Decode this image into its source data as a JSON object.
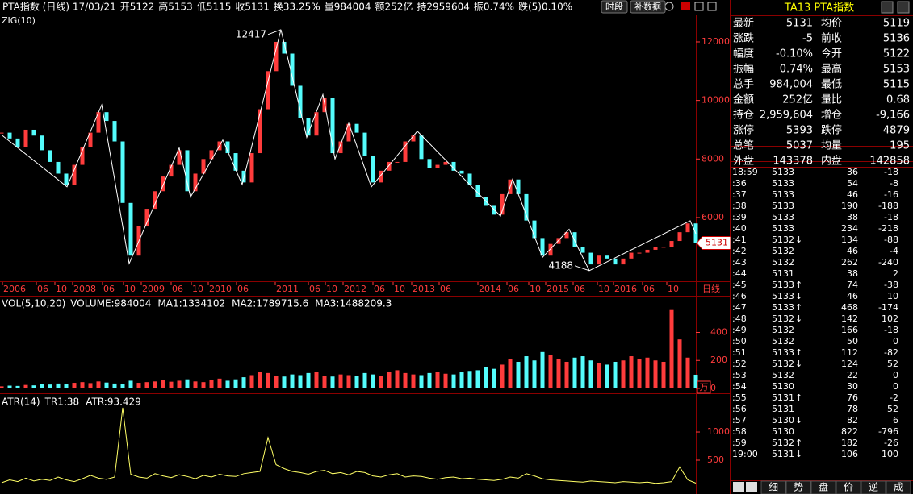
{
  "header": {
    "items": [
      {
        "text": "PTA指数 (日线) 17/03/21",
        "color": "#ffffff"
      },
      {
        "text": "开5122",
        "color": "#00e600"
      },
      {
        "text": "高5153",
        "color": "#ff3c3c"
      },
      {
        "text": "低5115",
        "color": "#00e600"
      },
      {
        "text": "收5131",
        "color": "#00e600"
      },
      {
        "text": "换33.25%",
        "color": "#ffffff"
      },
      {
        "text": "量984004",
        "color": "#ffffff"
      },
      {
        "text": "额252亿",
        "color": "#ffffff"
      },
      {
        "text": "持2959604",
        "color": "#ffffff"
      },
      {
        "text": "振0.74%",
        "color": "#ffffff"
      },
      {
        "text": "跌(5)0.10%",
        "color": "#00e600"
      }
    ],
    "buttons": [
      "时段",
      "补数据"
    ]
  },
  "price_chart": {
    "indicator": "ZIG(10)",
    "period": "日线",
    "ylim": [
      3880,
      12880
    ],
    "yticks": [
      6000,
      8000,
      10000,
      12000
    ],
    "xlim": [
      0,
      860
    ],
    "xticks": [
      {
        "value": 1,
        "label": "2006"
      },
      {
        "value": 43,
        "label": "06"
      },
      {
        "value": 66,
        "label": "10"
      },
      {
        "value": 88,
        "label": "2008"
      },
      {
        "value": 125,
        "label": "06"
      },
      {
        "value": 151,
        "label": "10"
      },
      {
        "value": 173,
        "label": "2009"
      },
      {
        "value": 210,
        "label": "06"
      },
      {
        "value": 235,
        "label": "10"
      },
      {
        "value": 256,
        "label": "2010"
      },
      {
        "value": 291,
        "label": "06"
      },
      {
        "value": 339,
        "label": "2011"
      },
      {
        "value": 380,
        "label": "06"
      },
      {
        "value": 401,
        "label": "10"
      },
      {
        "value": 423,
        "label": "2012"
      },
      {
        "value": 460,
        "label": "06"
      },
      {
        "value": 485,
        "label": "10"
      },
      {
        "value": 508,
        "label": "2013"
      },
      {
        "value": 542,
        "label": "06"
      },
      {
        "value": 590,
        "label": "2014"
      },
      {
        "value": 626,
        "label": "06"
      },
      {
        "value": 653,
        "label": "10"
      },
      {
        "value": 674,
        "label": "2015"
      },
      {
        "value": 708,
        "label": "06"
      },
      {
        "value": 738,
        "label": "10"
      },
      {
        "value": 758,
        "label": "2016"
      },
      {
        "value": 794,
        "label": "06"
      },
      {
        "value": 824,
        "label": "10"
      }
    ],
    "x": [
      0,
      10,
      20,
      30,
      40,
      50,
      60,
      70,
      80,
      90,
      100,
      110,
      120,
      130,
      140,
      150,
      160,
      170,
      180,
      190,
      200,
      210,
      220,
      230,
      240,
      250,
      260,
      270,
      280,
      290,
      300,
      310,
      320,
      330,
      340,
      350,
      360,
      370,
      380,
      390,
      400,
      410,
      420,
      430,
      440,
      450,
      460,
      470,
      480,
      490,
      500,
      510,
      520,
      530,
      540,
      550,
      560,
      570,
      580,
      590,
      600,
      610,
      620,
      630,
      640,
      650,
      660,
      670,
      680,
      690,
      700,
      710,
      720,
      730,
      740,
      750,
      760,
      770,
      780,
      790,
      800,
      810,
      820,
      830,
      840,
      850,
      860
    ],
    "close": [
      8900,
      8700,
      8400,
      9000,
      8800,
      8300,
      7900,
      7500,
      7100,
      7800,
      8400,
      8900,
      9600,
      9300,
      8600,
      6500,
      4700,
      5700,
      6300,
      6900,
      7400,
      7800,
      8300,
      6900,
      7500,
      8000,
      8300,
      8600,
      8200,
      7600,
      7200,
      8200,
      9700,
      11000,
      12000,
      11600,
      10500,
      9400,
      8800,
      9600,
      10100,
      8200,
      8600,
      9200,
      8900,
      8100,
      7200,
      7600,
      7900,
      7900,
      8600,
      8800,
      8000,
      7700,
      7800,
      7900,
      7600,
      7500,
      7100,
      6700,
      6400,
      6100,
      6800,
      7300,
      6800,
      5900,
      5300,
      4700,
      5100,
      5300,
      5500,
      5000,
      4800,
      4400,
      4700,
      4600,
      4400,
      4600,
      4800,
      4800,
      4900,
      5000,
      5000,
      5200,
      5500,
      5800,
      5131
    ],
    "zig": {
      "x": [
        1,
        81,
        124,
        158,
        220,
        234,
        274,
        298,
        346,
        378,
        398,
        413,
        430,
        458,
        515,
        618,
        633,
        670,
        703,
        728,
        853,
        860
      ],
      "y": [
        8800,
        7050,
        9850,
        4430,
        8380,
        6700,
        8650,
        7130,
        12417,
        8740,
        10200,
        8000,
        9220,
        7050,
        8950,
        6050,
        7310,
        4640,
        5600,
        4188,
        5890,
        5450
      ]
    }
  },
  "volume_chart": {
    "legend": "VOL(5,10,20)",
    "items": [
      {
        "text": "VOLUME:984004",
        "color": "#ffffff"
      },
      {
        "text": "MA1:1334102",
        "color": "#ffff00"
      },
      {
        "text": "MA2:1789715.6",
        "color": "#ff00ff"
      },
      {
        "text": "MA3:1488209.3",
        "color": "#00ff00"
      }
    ],
    "unit": "万",
    "ylim": [
      0,
      633
    ],
    "yticks": [
      0,
      200,
      400
    ],
    "values": [
      15,
      20,
      18,
      25,
      22,
      30,
      28,
      35,
      30,
      40,
      45,
      38,
      50,
      42,
      35,
      30,
      55,
      40,
      45,
      50,
      60,
      48,
      55,
      65,
      50,
      45,
      60,
      70,
      55,
      65,
      80,
      95,
      120,
      110,
      90,
      85,
      100,
      95,
      110,
      120,
      90,
      85,
      100,
      95,
      90,
      110,
      100,
      90,
      120,
      130,
      110,
      100,
      95,
      110,
      120,
      105,
      100,
      115,
      125,
      130,
      150,
      140,
      170,
      210,
      190,
      230,
      200,
      260,
      240,
      210,
      190,
      220,
      230,
      200,
      180,
      170,
      190,
      200,
      230,
      210,
      220,
      200,
      190,
      560,
      350,
      220,
      98
    ]
  },
  "atr_chart": {
    "legend": "ATR(14)",
    "items": [
      {
        "text": "TR1:38",
        "color": "#ffffff"
      },
      {
        "text": "ATR:93.429",
        "color": "#ffff00"
      }
    ],
    "ylim": [
      0,
      1629
    ],
    "yticks": [
      500,
      1000
    ],
    "values": [
      100,
      150,
      120,
      180,
      130,
      160,
      140,
      200,
      150,
      120,
      170,
      230,
      180,
      160,
      200,
      1430,
      250,
      200,
      180,
      260,
      220,
      190,
      240,
      210,
      170,
      230,
      200,
      250,
      220,
      210,
      260,
      280,
      300,
      900,
      420,
      350,
      300,
      280,
      250,
      300,
      320,
      260,
      280,
      240,
      300,
      280,
      220,
      200,
      240,
      260,
      200,
      220,
      210,
      180,
      160,
      190,
      200,
      170,
      180,
      160,
      150,
      140,
      160,
      200,
      180,
      260,
      220,
      170,
      150,
      140,
      130,
      120,
      110,
      130,
      120,
      110,
      100,
      120,
      110,
      100,
      110,
      90,
      100,
      120,
      380,
      150,
      93
    ]
  },
  "quote": {
    "title": "TA13  PTA指数",
    "rows": [
      {
        "l1": "最新",
        "v1": "5131",
        "c1": "#00e600",
        "l2": "均价",
        "v2": "5119",
        "c2": "#ffffff"
      },
      {
        "l1": "涨跌",
        "v1": "-5",
        "c1": "#00e600",
        "l2": "前收",
        "v2": "5136",
        "c2": "#ffffff"
      },
      {
        "l1": "幅度",
        "v1": "-0.10%",
        "c1": "#00e600",
        "l2": "今开",
        "v2": "5122",
        "c2": "#00e600"
      },
      {
        "l1": "振幅",
        "v1": "0.74%",
        "c1": "#ffffff",
        "l2": "最高",
        "v2": "5153",
        "c2": "#ff3c3c"
      },
      {
        "l1": "总手",
        "v1": "984,004",
        "c1": "#ffff00",
        "l2": "最低",
        "v2": "5115",
        "c2": "#00e600"
      },
      {
        "l1": "金额",
        "v1": "252亿",
        "c1": "#ffffff",
        "l2": "量比",
        "v2": "0.68",
        "c2": "#ffffff"
      },
      {
        "l1": "持仓",
        "v1": "2,959,604",
        "c1": "#ffffff",
        "l2": "增仓",
        "v2": "-9,166",
        "c2": "#ffffff"
      },
      {
        "l1": "涨停",
        "v1": "5393",
        "c1": "#ff3c3c",
        "l2": "跌停",
        "v2": "4879",
        "c2": "#00e600"
      },
      {
        "l1": "总笔",
        "v1": "5037",
        "c1": "#ffffff",
        "l2": "均量",
        "v2": "195",
        "c2": "#ffffff"
      },
      {
        "l1": "外盘",
        "v1": "143378",
        "c1": "#ff3c3c",
        "l2": "内盘",
        "v2": "142858",
        "c2": "#00e600"
      }
    ],
    "ticks": [
      {
        "time": "18:59",
        "price": "5133",
        "pc": "#ff3c3c",
        "dir": null,
        "vol": "36",
        "chg": "-18"
      },
      {
        "time": ":36",
        "price": "5133",
        "pc": "#ff3c3c",
        "dir": null,
        "vol": "54",
        "chg": "-8"
      },
      {
        "time": ":37",
        "price": "5133",
        "pc": "#ff3c3c",
        "dir": null,
        "vol": "46",
        "chg": "-16"
      },
      {
        "time": ":38",
        "price": "5133",
        "pc": "#ff3c3c",
        "dir": null,
        "vol": "190",
        "chg": "-188"
      },
      {
        "time": ":39",
        "price": "5133",
        "pc": "#ff3c3c",
        "dir": null,
        "vol": "38",
        "chg": "-18"
      },
      {
        "time": ":40",
        "price": "5133",
        "pc": "#ff3c3c",
        "dir": null,
        "vol": "234",
        "chg": "-218"
      },
      {
        "time": ":41",
        "price": "5132",
        "pc": "#ff3c3c",
        "dir": "↓",
        "vol": "134",
        "chg": "-88"
      },
      {
        "time": ":42",
        "price": "5132",
        "pc": "#ff3c3c",
        "dir": null,
        "vol": "46",
        "chg": "-4"
      },
      {
        "time": ":43",
        "price": "5132",
        "pc": "#ff3c3c",
        "dir": null,
        "vol": "262",
        "chg": "-240"
      },
      {
        "time": ":44",
        "price": "5131",
        "pc": "#ffffff",
        "dir": null,
        "vol": "38",
        "chg": "2"
      },
      {
        "time": ":45",
        "price": "5133",
        "pc": "#ff3c3c",
        "dir": "↑",
        "vol": "74",
        "chg": "-38"
      },
      {
        "time": ":46",
        "price": "5133",
        "pc": "#ff3c3c",
        "dir": "↓",
        "vol": "46",
        "chg": "10"
      },
      {
        "time": ":47",
        "price": "5133",
        "pc": "#ff3c3c",
        "dir": "↑",
        "vol": "468",
        "chg": "-174"
      },
      {
        "time": ":48",
        "price": "5132",
        "pc": "#ff3c3c",
        "dir": "↓",
        "vol": "142",
        "chg": "102"
      },
      {
        "time": ":49",
        "price": "5132",
        "pc": "#ff3c3c",
        "dir": null,
        "vol": "166",
        "chg": "-18"
      },
      {
        "time": ":50",
        "price": "5132",
        "pc": "#ff3c3c",
        "dir": null,
        "vol": "50",
        "chg": "0"
      },
      {
        "time": ":51",
        "price": "5133",
        "pc": "#ff3c3c",
        "dir": "↑",
        "vol": "112",
        "chg": "-82"
      },
      {
        "time": ":52",
        "price": "5132",
        "pc": "#ff3c3c",
        "dir": "↓",
        "vol": "124",
        "chg": "52"
      },
      {
        "time": ":53",
        "price": "5132",
        "pc": "#ff3c3c",
        "dir": null,
        "vol": "22",
        "chg": "0"
      },
      {
        "time": ":54",
        "price": "5130",
        "pc": "#00e600",
        "dir": null,
        "vol": "30",
        "chg": "0"
      },
      {
        "time": ":55",
        "price": "5131",
        "pc": "#ffffff",
        "dir": "↑",
        "vol": "76",
        "chg": "-2"
      },
      {
        "time": ":56",
        "price": "5131",
        "pc": "#ffffff",
        "dir": null,
        "vol": "78",
        "chg": "52"
      },
      {
        "time": ":57",
        "price": "5130",
        "pc": "#00e600",
        "dir": "↓",
        "vol": "82",
        "chg": "6"
      },
      {
        "time": ":58",
        "price": "5130",
        "pc": "#00e600",
        "dir": null,
        "vol": "822",
        "chg": "-796"
      },
      {
        "time": ":59",
        "price": "5132",
        "pc": "#ff3c3c",
        "dir": "↑",
        "vol": "182",
        "chg": "-26"
      },
      {
        "time": "19:00",
        "price": "5131",
        "pc": "#ffffff",
        "dir": "↓",
        "vol": "106",
        "chg": "100"
      }
    ],
    "tabs": [
      "细",
      "势",
      "盘",
      "价",
      "逆",
      "成"
    ]
  }
}
